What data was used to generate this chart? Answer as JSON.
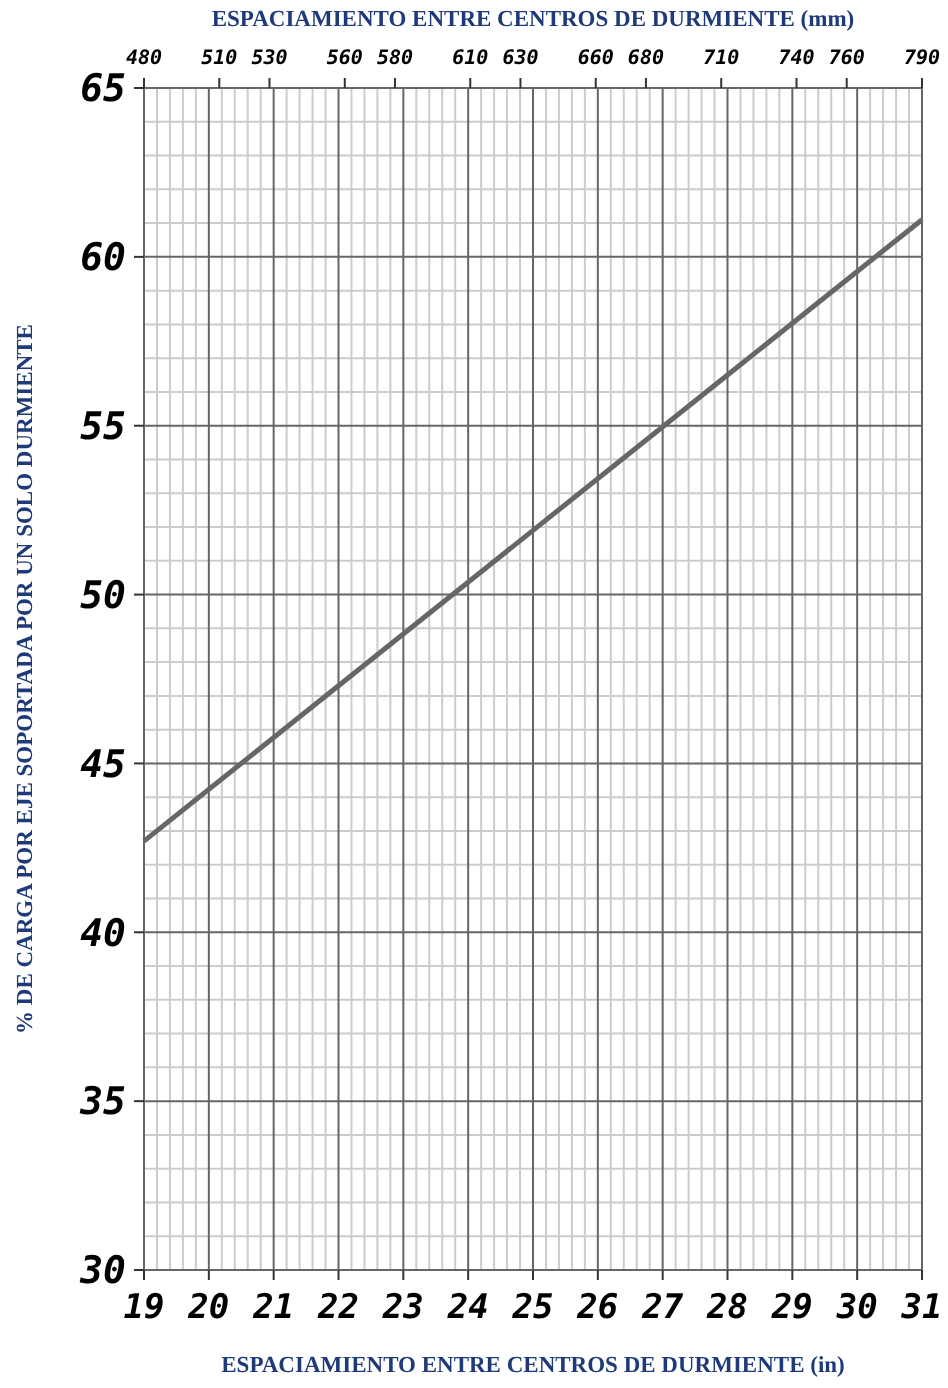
{
  "chart_data": {
    "type": "line",
    "xlabel": "ESPACIAMIENTO ENTRE CENTROS DE DURMIENTE (in)",
    "x2label": "ESPACIAMIENTO ENTRE CENTROS DE DURMIENTE (mm)",
    "ylabel": "% DE CARGA POR EJE SOPORTADA POR UN SOLO DURMIENTE",
    "x": [
      19,
      22,
      25,
      28,
      31
    ],
    "series": [
      {
        "color": "#666666",
        "values": [
          42.7,
          47.3,
          51.9,
          56.5,
          61.1
        ]
      }
    ],
    "xlim": [
      19,
      31
    ],
    "xticks": [
      19,
      20,
      21,
      22,
      23,
      24,
      25,
      26,
      27,
      28,
      29,
      30,
      31
    ],
    "x2lim": [
      480,
      790
    ],
    "x2ticks": [
      480,
      510,
      530,
      560,
      580,
      610,
      630,
      660,
      680,
      710,
      740,
      760,
      790
    ],
    "ylim": [
      30,
      65
    ],
    "yticks": [
      30,
      35,
      40,
      45,
      50,
      55,
      60,
      65
    ],
    "grid": true,
    "marker": "none",
    "line_style": "solid"
  }
}
